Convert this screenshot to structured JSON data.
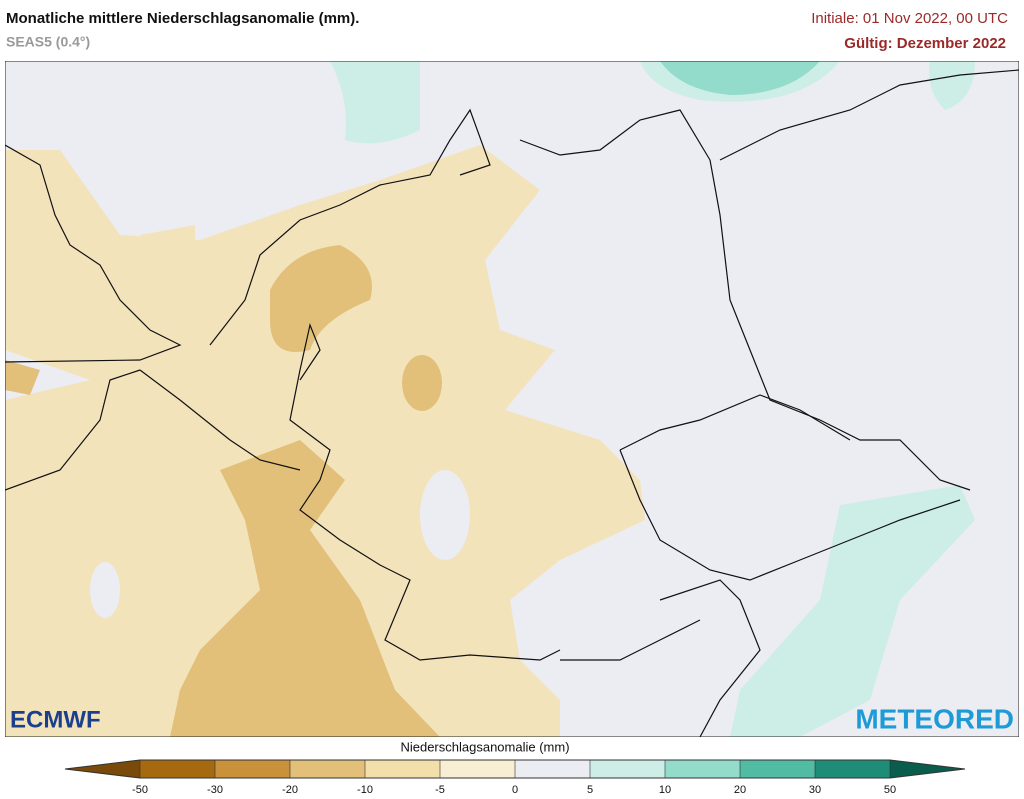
{
  "header": {
    "title": "Monatliche mittlere Niederschlagsanomalie (mm).",
    "subtitle": "SEAS5 (0.4°)",
    "initial": "Initiale: 01 Nov 2022, 00 UTC",
    "valid": "Gültig: Dezember 2022"
  },
  "logos": {
    "left": "ECMWF",
    "right": "METEORED"
  },
  "colorbar": {
    "label": "Niederschlagsanomalie (mm)",
    "ticks": [
      -50,
      -30,
      -20,
      -10,
      -5,
      0,
      5,
      10,
      20,
      30,
      50
    ],
    "colors": [
      "#7a4a0a",
      "#a5690f",
      "#c8913a",
      "#e2c07a",
      "#f2dfaa",
      "#f8eed3",
      "#ececf3",
      "#cdeee6",
      "#93dccb",
      "#52bba4",
      "#1f8c78",
      "#0a5c4c"
    ]
  }
}
